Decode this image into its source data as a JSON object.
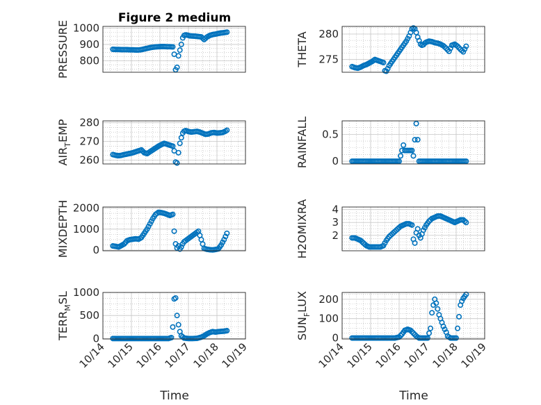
{
  "figure": {
    "title": "Figure 2 medium",
    "xlabel": "Time",
    "marker_color": "#0072BD",
    "grid_color": "#b0b0b0",
    "axis_color": "#262626"
  },
  "chart_data": [
    {
      "type": "scatter",
      "ylabel": "PRESSURE",
      "ylim": [
        730,
        1010
      ],
      "yticks": [
        800,
        900,
        1000
      ],
      "xlim": [
        14,
        19
      ],
      "x": [
        14.35,
        14.45,
        14.55,
        14.65,
        14.75,
        14.85,
        14.95,
        15.05,
        15.15,
        15.25,
        15.35,
        15.45,
        15.55,
        15.65,
        15.75,
        15.85,
        15.95,
        16.05,
        16.15,
        16.25,
        16.35,
        16.45,
        16.5,
        16.55,
        16.6,
        16.65,
        16.7,
        16.75,
        16.8,
        16.85,
        16.9,
        16.95,
        17.0,
        17.05,
        17.15,
        17.25,
        17.35,
        17.45,
        17.55,
        17.65,
        17.75,
        17.85,
        17.95,
        18.05,
        18.15,
        18.25,
        18.35
      ],
      "y": [
        870,
        869,
        869,
        868,
        868,
        868,
        867,
        867,
        866,
        866,
        868,
        872,
        876,
        880,
        883,
        885,
        886,
        887,
        887,
        886,
        886,
        885,
        840,
        745,
        760,
        830,
        865,
        900,
        940,
        955,
        958,
        957,
        955,
        952,
        951,
        950,
        948,
        946,
        930,
        945,
        955,
        960,
        963,
        967,
        970,
        972,
        975
      ]
    },
    {
      "type": "scatter",
      "ylabel": "THETA",
      "ylim": [
        272.5,
        281.5
      ],
      "yticks": [
        275,
        280
      ],
      "xlim": [
        14,
        19
      ],
      "x": [
        14.35,
        14.45,
        14.55,
        14.65,
        14.75,
        14.85,
        14.95,
        15.05,
        15.15,
        15.25,
        15.35,
        15.45,
        15.5,
        15.55,
        15.6,
        15.65,
        15.75,
        15.85,
        15.95,
        16.05,
        16.15,
        16.25,
        16.35,
        16.45,
        16.5,
        16.55,
        16.6,
        16.65,
        16.7,
        16.75,
        16.8,
        16.85,
        16.9,
        16.95,
        17.05,
        17.15,
        17.25,
        17.35,
        17.45,
        17.55,
        17.65,
        17.75,
        17.85,
        17.95,
        18.05,
        18.15,
        18.25,
        18.35
      ],
      "y": [
        273.6,
        273.4,
        273.3,
        273.5,
        273.8,
        274.0,
        274.3,
        274.6,
        275.0,
        274.8,
        274.6,
        274.4,
        272.8,
        272.7,
        273.2,
        273.8,
        274.6,
        275.4,
        276.2,
        277.0,
        277.8,
        278.6,
        279.6,
        281.0,
        281.2,
        281.0,
        280.3,
        279.4,
        278.7,
        278.0,
        277.8,
        277.9,
        278.2,
        278.4,
        278.6,
        278.5,
        278.3,
        278.2,
        278.0,
        277.7,
        277.2,
        276.6,
        277.8,
        278.0,
        277.6,
        277.0,
        276.5,
        277.6
      ]
    },
    {
      "type": "scatter",
      "ylabel": "AIR_TEMP",
      "ylim": [
        258,
        281
      ],
      "yticks": [
        260,
        270,
        280
      ],
      "xlim": [
        14,
        19
      ],
      "x": [
        14.35,
        14.45,
        14.55,
        14.65,
        14.75,
        14.85,
        14.95,
        15.05,
        15.15,
        15.25,
        15.35,
        15.45,
        15.55,
        15.65,
        15.75,
        15.85,
        15.95,
        16.05,
        16.15,
        16.25,
        16.35,
        16.45,
        16.5,
        16.55,
        16.6,
        16.65,
        16.7,
        16.75,
        16.8,
        16.85,
        16.9,
        16.95,
        17.0,
        17.1,
        17.2,
        17.3,
        17.4,
        17.5,
        17.6,
        17.7,
        17.8,
        17.9,
        18.0,
        18.1,
        18.2,
        18.3,
        18.35
      ],
      "y": [
        263,
        262.6,
        262.4,
        262.6,
        263,
        263.3,
        263.6,
        264,
        264.5,
        265,
        265.5,
        264,
        263.5,
        264.5,
        265.5,
        266.5,
        267.5,
        268.3,
        269,
        268.5,
        268,
        267.5,
        265,
        259,
        258.5,
        264,
        269,
        272,
        274.5,
        275.5,
        275.8,
        275.6,
        275.3,
        275,
        275.2,
        275.4,
        275,
        274.4,
        273.8,
        274,
        274.6,
        274.8,
        274.5,
        274.6,
        274.8,
        275.5,
        276
      ]
    },
    {
      "type": "scatter",
      "ylabel": "RAINFALL",
      "ylim": [
        -0.05,
        0.75
      ],
      "yticks": [
        0,
        0.5
      ],
      "xlim": [
        14,
        19
      ],
      "x": [
        14.35,
        14.5,
        14.65,
        14.8,
        14.95,
        15.1,
        15.25,
        15.4,
        15.55,
        15.7,
        15.85,
        16.0,
        16.1,
        16.15,
        16.2,
        16.25,
        16.3,
        16.35,
        16.4,
        16.45,
        16.5,
        16.55,
        16.6,
        16.65,
        16.7,
        16.75,
        16.85,
        17.0,
        17.15,
        17.3,
        17.45,
        17.6,
        17.75,
        17.9,
        18.05,
        18.2,
        18.35
      ],
      "y": [
        0,
        0,
        0,
        0,
        0,
        0,
        0,
        0,
        0,
        0,
        0,
        0,
        0.2,
        0.3,
        0.2,
        0.2,
        0.2,
        0.2,
        0.2,
        0.2,
        0.1,
        0.4,
        0.7,
        0.4,
        0,
        0,
        0,
        0,
        0,
        0,
        0,
        0,
        0,
        0,
        0,
        0,
        0
      ]
    },
    {
      "type": "scatter",
      "ylabel": "MIXDEPTH",
      "ylim": [
        -30,
        2050
      ],
      "yticks": [
        0,
        1000,
        2000
      ],
      "xlim": [
        14,
        19
      ],
      "x": [
        14.35,
        14.45,
        14.55,
        14.65,
        14.75,
        14.85,
        14.95,
        15.05,
        15.15,
        15.25,
        15.35,
        15.45,
        15.55,
        15.65,
        15.75,
        15.85,
        15.95,
        16.05,
        16.15,
        16.25,
        16.35,
        16.45,
        16.5,
        16.55,
        16.6,
        16.65,
        16.7,
        16.75,
        16.8,
        16.85,
        16.95,
        17.05,
        17.15,
        17.25,
        17.35,
        17.45,
        17.55,
        17.65,
        17.75,
        17.85,
        17.95,
        18.05,
        18.15,
        18.25,
        18.35
      ],
      "y": [
        200,
        180,
        150,
        220,
        300,
        450,
        500,
        520,
        540,
        520,
        600,
        800,
        1000,
        1250,
        1500,
        1700,
        1800,
        1780,
        1750,
        1700,
        1650,
        1700,
        900,
        300,
        100,
        200,
        50,
        150,
        300,
        400,
        500,
        600,
        700,
        800,
        900,
        500,
        80,
        40,
        20,
        10,
        30,
        60,
        250,
        500,
        800
      ]
    },
    {
      "type": "scatter",
      "ylabel": "H2OMIXRA",
      "ylim": [
        0.8,
        4.2
      ],
      "yticks": [
        2,
        3,
        4
      ],
      "xlim": [
        14,
        19
      ],
      "x": [
        14.35,
        14.45,
        14.55,
        14.65,
        14.75,
        14.85,
        14.95,
        15.05,
        15.15,
        15.25,
        15.35,
        15.45,
        15.55,
        15.65,
        15.75,
        15.85,
        15.95,
        16.05,
        16.15,
        16.25,
        16.35,
        16.45,
        16.5,
        16.55,
        16.6,
        16.65,
        16.7,
        16.75,
        16.85,
        16.95,
        17.05,
        17.15,
        17.25,
        17.35,
        17.45,
        17.55,
        17.65,
        17.75,
        17.85,
        17.95,
        18.05,
        18.15,
        18.25,
        18.35
      ],
      "y": [
        1.8,
        1.8,
        1.7,
        1.6,
        1.4,
        1.2,
        1.1,
        1.1,
        1.1,
        1.1,
        1.1,
        1.2,
        1.6,
        1.9,
        2.1,
        2.3,
        2.5,
        2.7,
        2.8,
        2.9,
        2.9,
        2.8,
        1.7,
        1.4,
        2.2,
        2.5,
        2.0,
        1.8,
        2.4,
        2.8,
        3.1,
        3.3,
        3.4,
        3.5,
        3.5,
        3.4,
        3.3,
        3.2,
        3.1,
        3.0,
        3.1,
        3.2,
        3.2,
        3.0
      ]
    },
    {
      "type": "scatter",
      "ylabel": "TERR_MSL",
      "ylim": [
        -10,
        1000
      ],
      "yticks": [
        0,
        500,
        1000
      ],
      "xlim": [
        14,
        19
      ],
      "x": [
        14.35,
        14.5,
        14.65,
        14.8,
        14.95,
        15.1,
        15.25,
        15.4,
        15.55,
        15.7,
        15.85,
        16.0,
        16.15,
        16.3,
        16.4,
        16.45,
        16.5,
        16.55,
        16.6,
        16.65,
        16.7,
        16.75,
        16.85,
        17.0,
        17.15,
        17.3,
        17.45,
        17.55,
        17.65,
        17.75,
        17.85,
        17.95,
        18.05,
        18.15,
        18.25,
        18.35
      ],
      "y": [
        0,
        0,
        0,
        0,
        0,
        0,
        0,
        0,
        0,
        0,
        0,
        0,
        0,
        0,
        20,
        250,
        860,
        880,
        500,
        300,
        150,
        60,
        10,
        0,
        0,
        5,
        30,
        60,
        100,
        130,
        150,
        140,
        150,
        155,
        160,
        170
      ]
    },
    {
      "type": "scatter",
      "ylabel": "SUN_FLUX",
      "ylim": [
        -5,
        235
      ],
      "yticks": [
        0,
        100,
        200
      ],
      "xlim": [
        14,
        19
      ],
      "x": [
        14.35,
        14.5,
        14.65,
        14.8,
        14.95,
        15.1,
        15.25,
        15.4,
        15.55,
        15.7,
        15.85,
        16.0,
        16.1,
        16.2,
        16.3,
        16.4,
        16.5,
        16.6,
        16.7,
        16.8,
        16.9,
        17.0,
        17.1,
        17.15,
        17.2,
        17.25,
        17.3,
        17.35,
        17.4,
        17.45,
        17.5,
        17.55,
        17.6,
        17.65,
        17.7,
        17.8,
        17.9,
        18.0,
        18.05,
        18.1,
        18.15,
        18.2,
        18.25,
        18.3,
        18.35
      ],
      "y": [
        0,
        0,
        0,
        0,
        0,
        0,
        0,
        0,
        0,
        0,
        0,
        5,
        20,
        40,
        45,
        40,
        25,
        10,
        0,
        0,
        0,
        0,
        50,
        130,
        170,
        200,
        180,
        150,
        120,
        100,
        80,
        60,
        45,
        30,
        10,
        0,
        0,
        0,
        50,
        110,
        170,
        190,
        205,
        215,
        225
      ]
    }
  ],
  "xticks": [
    {
      "value": 14,
      "label": "10/14"
    },
    {
      "value": 15,
      "label": "10/15"
    },
    {
      "value": 16,
      "label": "10/16"
    },
    {
      "value": 17,
      "label": "10/17"
    },
    {
      "value": 18,
      "label": "10/18"
    },
    {
      "value": 19,
      "label": "10/19"
    }
  ]
}
